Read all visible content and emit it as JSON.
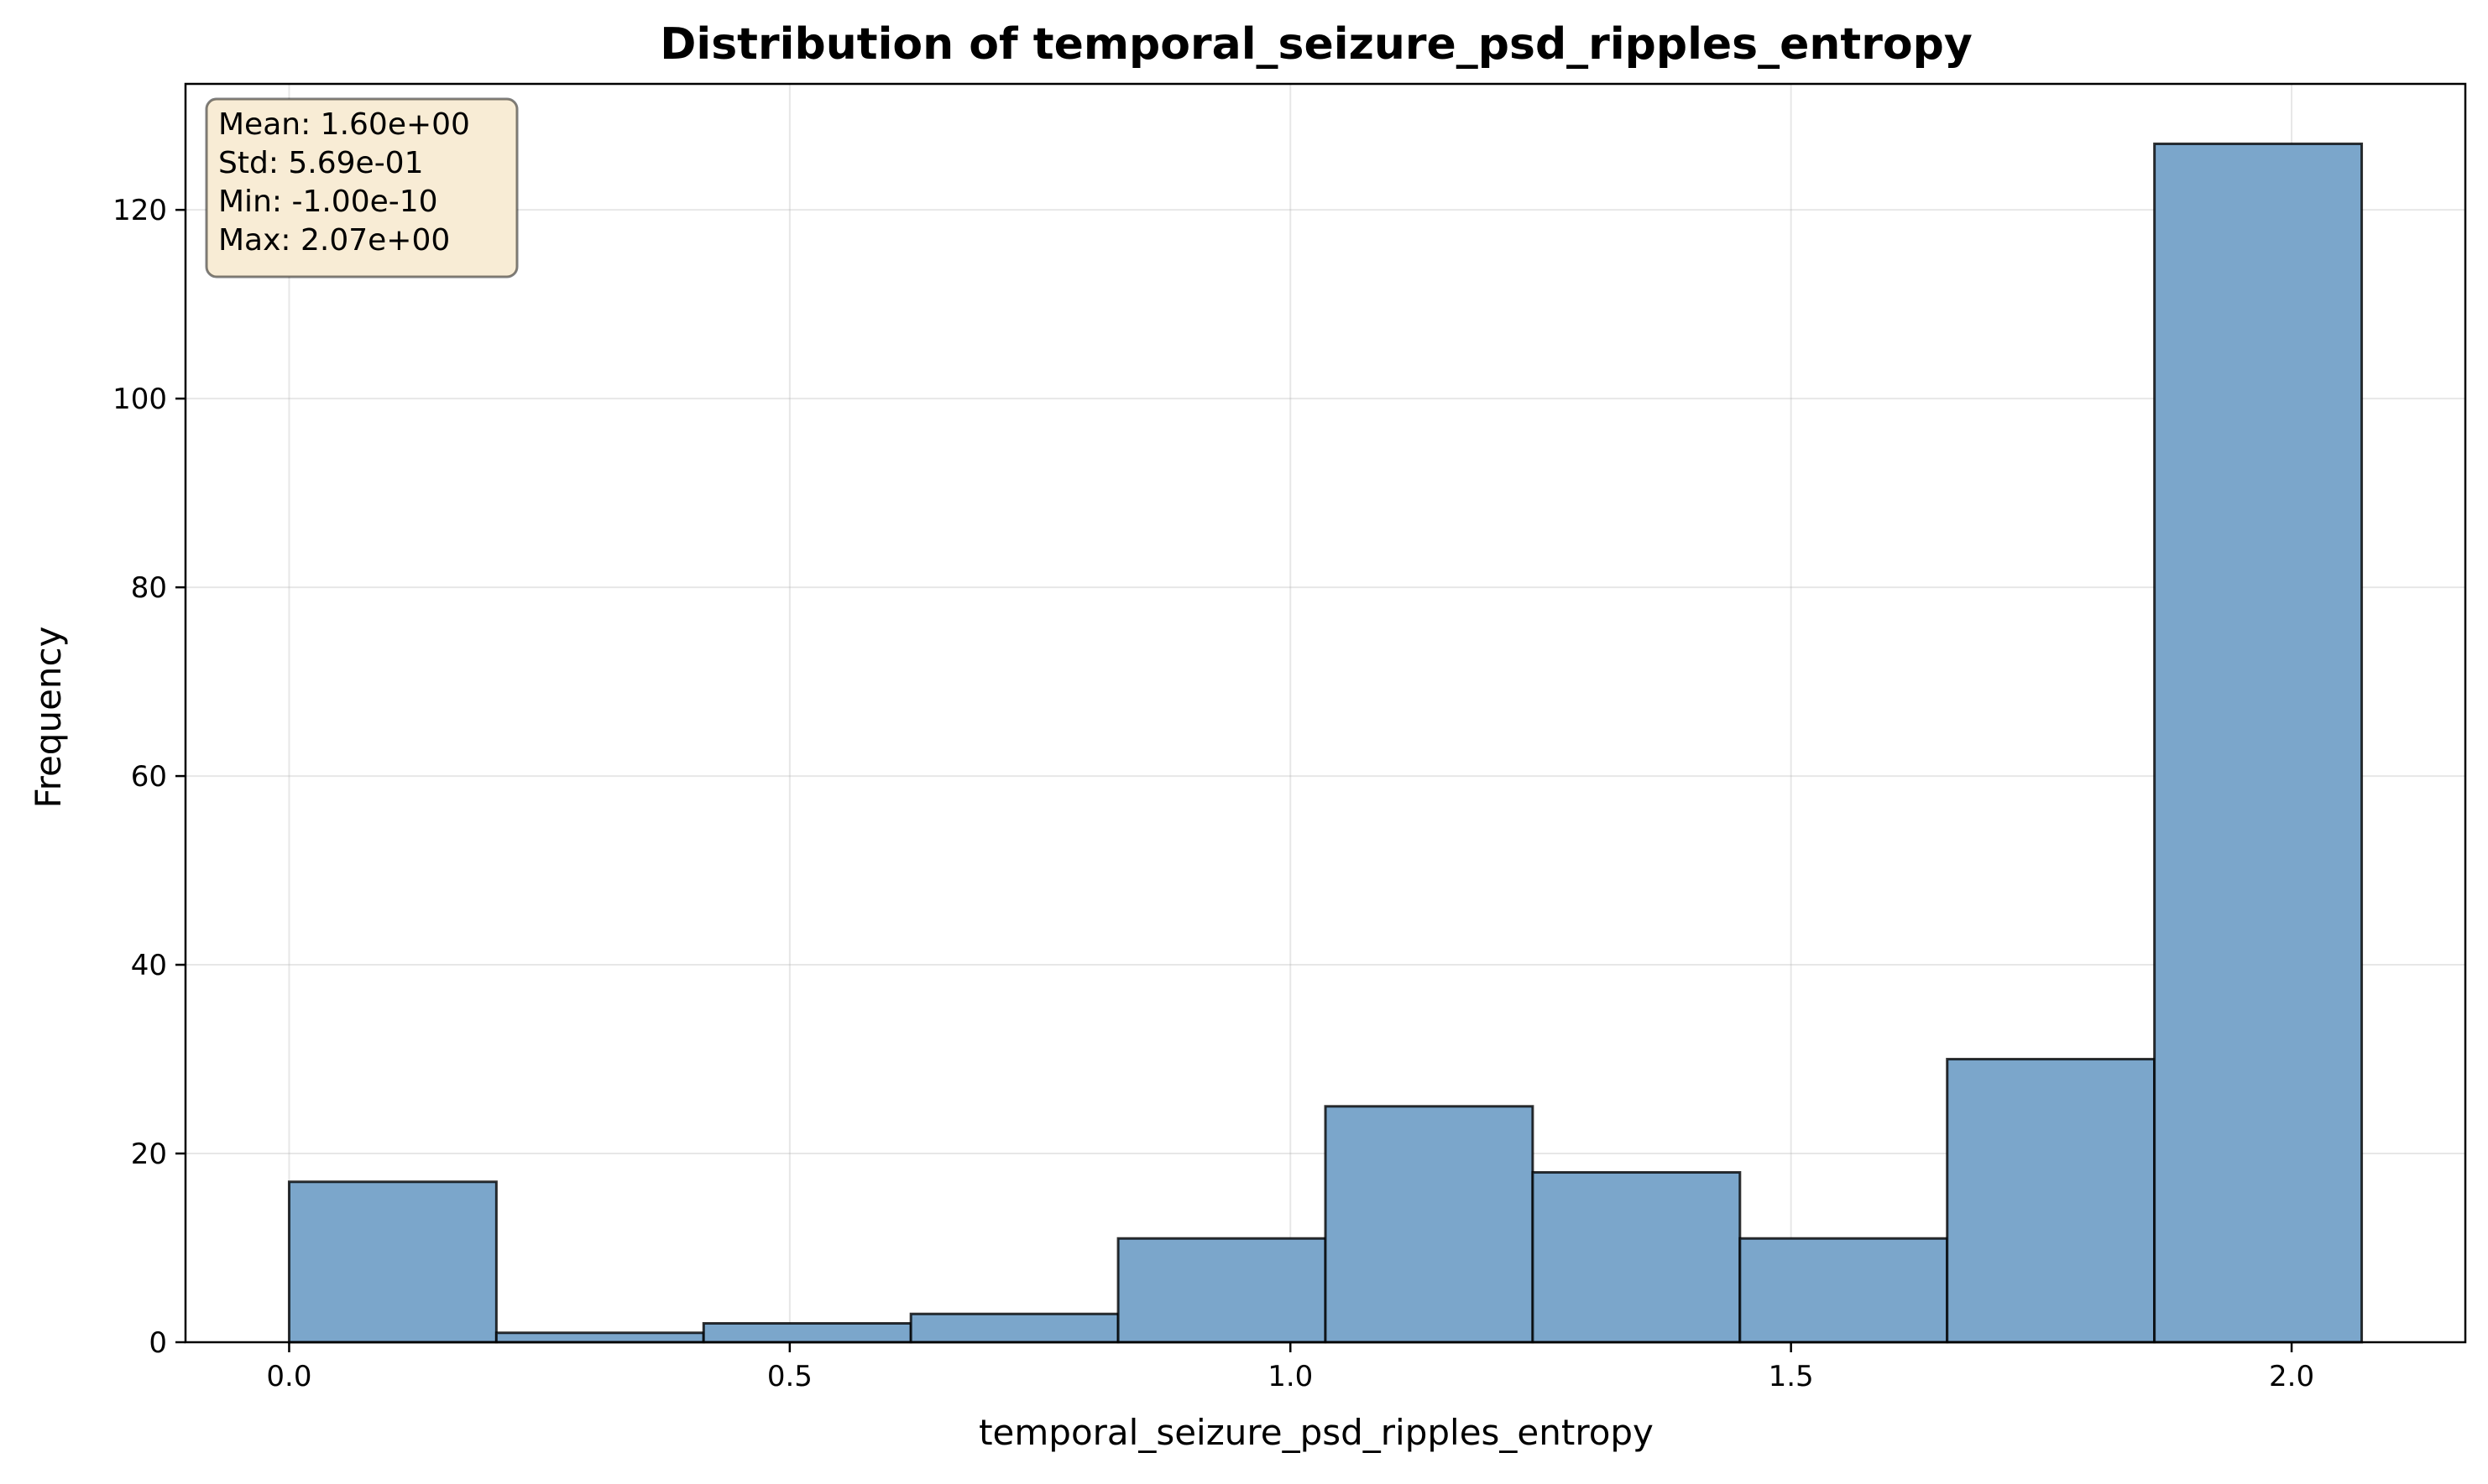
{
  "chart_data": {
    "type": "bar",
    "title": "Distribution of temporal_seizure_psd_ripples_entropy",
    "xlabel": "temporal_seizure_psd_ripples_entropy",
    "ylabel": "Frequency",
    "bin_edges": [
      -1e-10,
      0.207,
      0.414,
      0.621,
      0.828,
      1.035,
      1.242,
      1.449,
      1.656,
      1.863,
      2.07
    ],
    "values": [
      17,
      1,
      2,
      3,
      11,
      25,
      18,
      11,
      30,
      127
    ],
    "xlim": [
      -0.1035,
      2.1735
    ],
    "ylim": [
      0,
      133.35
    ],
    "xticks": [
      0.0,
      0.5,
      1.0,
      1.5,
      2.0
    ],
    "xtick_labels": [
      "0.0",
      "0.5",
      "1.0",
      "1.5",
      "2.0"
    ],
    "yticks": [
      0,
      20,
      40,
      60,
      80,
      100,
      120
    ],
    "ytick_labels": [
      "0",
      "20",
      "40",
      "60",
      "80",
      "100",
      "120"
    ],
    "grid": true,
    "colors": {
      "bar_fill": "#7ba6cb",
      "bar_edge": "#000000",
      "stats_box_fill": "#f8ecd5"
    },
    "stats_box": {
      "placement": "top-left",
      "lines": [
        "Mean: 1.60e+00",
        "Std: 5.69e-01",
        "Min: -1.00e-10",
        "Max: 2.07e+00"
      ]
    }
  }
}
